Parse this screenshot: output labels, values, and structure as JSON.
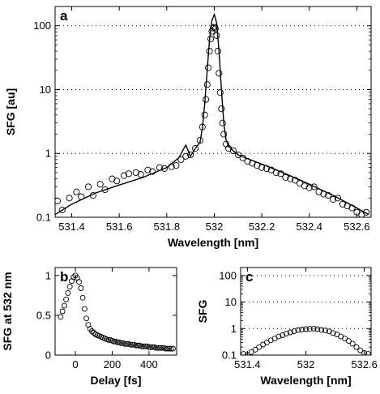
{
  "chart_data": [
    {
      "panel": "a",
      "type": "scatter",
      "yscale": "log",
      "xlabel": "Wavelength [nm]",
      "ylabel": "SFG [au]",
      "xlim": [
        531.33,
        532.66
      ],
      "ylim": [
        0.1,
        200
      ],
      "grid": "horizontal-dotted",
      "xticks": [
        531.4,
        531.6,
        531.8,
        532,
        532.2,
        532.4,
        532.6
      ],
      "xtick_labels": [
        "531.4",
        "531.6",
        "531.8",
        "532",
        "532.2",
        "532.4",
        "532.6"
      ],
      "yticks": [
        0.1,
        1,
        10,
        100
      ],
      "ytick_labels": [
        "0.1",
        "1",
        "10",
        "100"
      ],
      "series": [
        {
          "kind": "markers",
          "x": [
            531.34,
            531.36,
            531.39,
            531.42,
            531.44,
            531.47,
            531.49,
            531.52,
            531.54,
            531.57,
            531.59,
            531.62,
            531.64,
            531.67,
            531.69,
            531.72,
            531.74,
            531.77,
            531.79,
            531.82,
            531.84,
            531.86,
            531.88,
            531.9,
            531.92,
            531.94,
            531.95,
            531.96,
            531.965,
            531.97,
            531.975,
            531.98,
            531.985,
            531.99,
            531.995,
            532.0,
            532.005,
            532.01,
            532.015,
            532.02,
            532.025,
            532.03,
            532.035,
            532.04,
            532.05,
            532.06,
            532.08,
            532.1,
            532.12,
            532.14,
            532.16,
            532.18,
            532.2,
            532.22,
            532.24,
            532.26,
            532.28,
            532.3,
            532.32,
            532.34,
            532.36,
            532.38,
            532.4,
            532.42,
            532.44,
            532.46,
            532.48,
            532.5,
            532.52,
            532.54,
            532.56,
            532.58,
            532.6,
            532.62,
            532.64
          ],
          "y": [
            0.18,
            0.13,
            0.2,
            0.25,
            0.21,
            0.3,
            0.22,
            0.33,
            0.27,
            0.4,
            0.37,
            0.45,
            0.48,
            0.5,
            0.47,
            0.55,
            0.52,
            0.6,
            0.58,
            0.62,
            0.65,
            0.8,
            0.9,
            0.95,
            1.2,
            1.6,
            2.6,
            4,
            7,
            12,
            22,
            40,
            62,
            82,
            92,
            95,
            90,
            70,
            40,
            18,
            9,
            5,
            3,
            2,
            1.4,
            1.2,
            1.1,
            0.95,
            0.85,
            0.75,
            0.7,
            0.65,
            0.6,
            0.58,
            0.55,
            0.5,
            0.48,
            0.42,
            0.4,
            0.38,
            0.34,
            0.31,
            0.29,
            0.3,
            0.25,
            0.23,
            0.22,
            0.19,
            0.2,
            0.16,
            0.15,
            0.14,
            0.12,
            0.11,
            0.12
          ]
        },
        {
          "kind": "line",
          "x": [
            531.33,
            531.4,
            531.5,
            531.6,
            531.7,
            531.8,
            531.85,
            531.88,
            531.9,
            531.92,
            531.94,
            531.95,
            531.96,
            531.97,
            531.98,
            531.99,
            532.0,
            532.01,
            532.02,
            532.03,
            532.04,
            532.05,
            532.06,
            532.08,
            532.1,
            532.15,
            532.2,
            532.3,
            532.4,
            532.5,
            532.6,
            532.65
          ],
          "y": [
            0.11,
            0.16,
            0.24,
            0.32,
            0.42,
            0.6,
            0.85,
            1.35,
            0.9,
            1.2,
            1.5,
            2.5,
            6,
            20,
            60,
            120,
            150,
            110,
            40,
            10,
            3,
            1.6,
            1.3,
            1.1,
            0.95,
            0.8,
            0.68,
            0.48,
            0.33,
            0.22,
            0.14,
            0.11
          ]
        }
      ]
    },
    {
      "panel": "b",
      "type": "scatter",
      "xlabel": "Delay [fs]",
      "ylabel": "SFG at 532 nm",
      "xlim": [
        -110,
        550
      ],
      "ylim": [
        0,
        1.1
      ],
      "grid": "off",
      "xticks": [
        0,
        200,
        400
      ],
      "xtick_labels": [
        "0",
        "200",
        "400"
      ],
      "yticks": [
        0,
        0.5,
        1
      ],
      "ytick_labels": [
        "0",
        "0.5",
        "1"
      ],
      "series": [
        {
          "kind": "markers",
          "x": [
            -80,
            -70,
            -60,
            -50,
            -40,
            -30,
            -20,
            -10,
            0,
            10,
            20,
            30,
            40,
            50,
            60,
            70,
            80,
            90,
            100,
            110,
            120,
            130,
            140,
            150,
            160,
            170,
            180,
            190,
            200,
            210,
            220,
            230,
            240,
            250,
            260,
            270,
            280,
            290,
            300,
            310,
            320,
            330,
            340,
            350,
            360,
            370,
            380,
            390,
            400,
            410,
            420,
            430,
            440,
            450,
            460,
            470,
            480,
            490,
            500,
            510,
            520,
            530
          ],
          "y": [
            0.48,
            0.55,
            0.62,
            0.7,
            0.78,
            0.86,
            0.93,
            0.98,
            1.0,
            0.97,
            0.92,
            0.84,
            0.72,
            0.58,
            0.46,
            0.38,
            0.33,
            0.3,
            0.28,
            0.26,
            0.25,
            0.24,
            0.23,
            0.22,
            0.21,
            0.2,
            0.19,
            0.19,
            0.18,
            0.17,
            0.17,
            0.16,
            0.16,
            0.15,
            0.15,
            0.14,
            0.14,
            0.14,
            0.13,
            0.13,
            0.13,
            0.12,
            0.12,
            0.12,
            0.11,
            0.11,
            0.11,
            0.11,
            0.1,
            0.1,
            0.1,
            0.1,
            0.09,
            0.09,
            0.09,
            0.09,
            0.09,
            0.08,
            0.08,
            0.08,
            0.08,
            0.08
          ]
        }
      ]
    },
    {
      "panel": "c",
      "type": "scatter",
      "yscale": "log",
      "xlabel": "Wavelength [nm]",
      "ylabel": "SFG",
      "xlim": [
        531.33,
        532.67
      ],
      "ylim": [
        0.1,
        200
      ],
      "grid": "horizontal-dotted",
      "xticks": [
        531.4,
        532,
        532.6
      ],
      "xtick_labels": [
        "531.4",
        "532",
        "532.6"
      ],
      "yticks": [
        0.1,
        1,
        10,
        100
      ],
      "ytick_labels": [
        "0.1",
        "1",
        "10",
        "100"
      ],
      "series": [
        {
          "kind": "markers",
          "x": [
            531.36,
            531.4,
            531.44,
            531.48,
            531.52,
            531.56,
            531.6,
            531.64,
            531.68,
            531.72,
            531.76,
            531.8,
            531.84,
            531.88,
            531.92,
            531.96,
            532.0,
            532.04,
            532.08,
            532.12,
            532.16,
            532.2,
            532.24,
            532.28,
            532.32,
            532.36,
            532.4,
            532.44,
            532.48,
            532.52,
            532.56,
            532.6,
            532.64
          ],
          "y": [
            0.11,
            0.1,
            0.13,
            0.16,
            0.2,
            0.25,
            0.3,
            0.36,
            0.42,
            0.5,
            0.56,
            0.65,
            0.72,
            0.8,
            0.88,
            0.92,
            0.95,
            0.98,
            1.0,
            0.95,
            0.9,
            0.85,
            0.78,
            0.68,
            0.6,
            0.5,
            0.42,
            0.34,
            0.27,
            0.2,
            0.15,
            0.12,
            0.11
          ]
        }
      ]
    }
  ]
}
